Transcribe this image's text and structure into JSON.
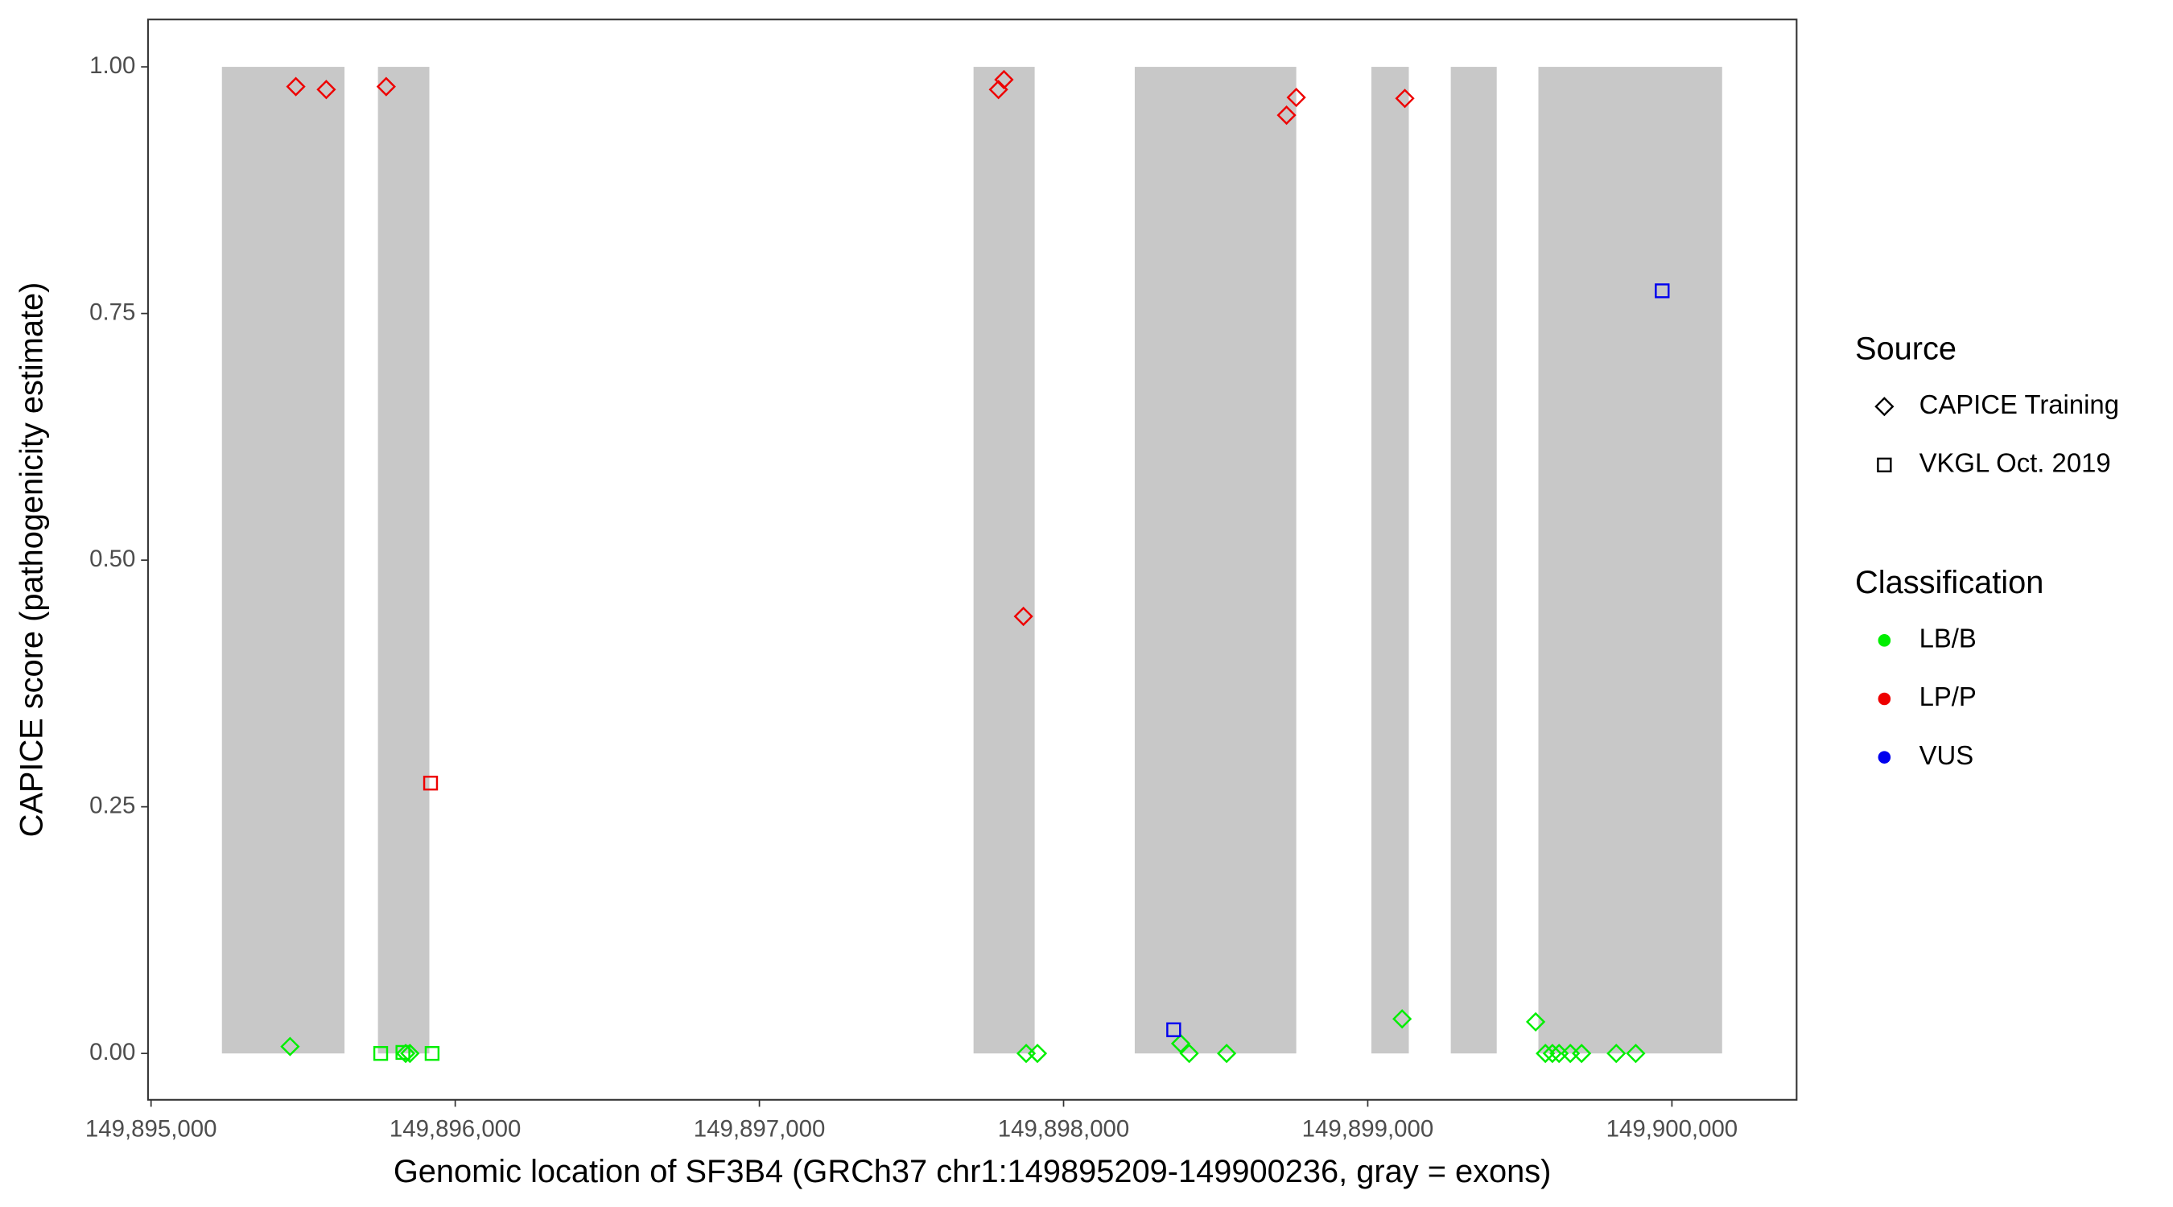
{
  "chart_data": {
    "type": "scatter",
    "x_label": "Genomic location of SF3B4 (GRCh37 chr1:149895209-149900236, gray = exons)",
    "y_label": "CAPICE score (pathogenicity estimate)",
    "xlim": [
      149894990,
      149900410
    ],
    "ylim": [
      -0.047,
      1.048
    ],
    "xticks": [
      {
        "value": 149895000,
        "label": "149,895,000"
      },
      {
        "value": 149896000,
        "label": "149,896,000"
      },
      {
        "value": 149897000,
        "label": "149,897,000"
      },
      {
        "value": 149898000,
        "label": "149,898,000"
      },
      {
        "value": 149899000,
        "label": "149,899,000"
      },
      {
        "value": 149900000,
        "label": "149,900,000"
      }
    ],
    "yticks": [
      {
        "value": 0,
        "label": "0.00"
      },
      {
        "value": 0.25,
        "label": "0.25"
      },
      {
        "value": 0.5,
        "label": "0.50"
      },
      {
        "value": 0.75,
        "label": "0.75"
      },
      {
        "value": 1,
        "label": "1.00"
      }
    ],
    "exon_color": "#c8c8c8",
    "exons": [
      {
        "start": 149895233,
        "end": 149895636
      },
      {
        "start": 149895746,
        "end": 149895915
      },
      {
        "start": 149897704,
        "end": 149897905
      },
      {
        "start": 149898234,
        "end": 149898765
      },
      {
        "start": 149899012,
        "end": 149899135
      },
      {
        "start": 149899273,
        "end": 149899424
      },
      {
        "start": 149899561,
        "end": 149900165
      }
    ],
    "shape_legend": {
      "title": "Source",
      "items": [
        {
          "name": "CAPICE Training",
          "shape": "diamond"
        },
        {
          "name": "VKGL Oct. 2019",
          "shape": "square"
        }
      ]
    },
    "color_legend_title": "Classification",
    "series": [
      {
        "name": "LB/B",
        "color": "#00ee00",
        "x": [
          149895457,
          149895837,
          149895851,
          149897877,
          149897914,
          149898385,
          149898413,
          149898536,
          149899113,
          149899552,
          149899584,
          149899607,
          149899629,
          149899666,
          149899703,
          149899817,
          149899881,
          149895755,
          149895828,
          149895924
        ],
        "values": [
          0.007,
          0,
          0,
          0,
          0,
          0.01,
          0,
          0,
          0.035,
          0.032,
          0,
          0,
          0,
          0,
          0,
          0,
          0,
          0,
          0.001,
          0
        ],
        "source": [
          0,
          0,
          0,
          0,
          0,
          0,
          0,
          0,
          0,
          0,
          0,
          0,
          0,
          0,
          0,
          0,
          0,
          1,
          1,
          1
        ]
      },
      {
        "name": "LP/P",
        "color": "#ee0000",
        "x": [
          149895476,
          149895576,
          149895773,
          149897786,
          149897804,
          149897868,
          149898733,
          149898765,
          149899122,
          149895919
        ],
        "values": [
          0.98,
          0.977,
          0.98,
          0.977,
          0.987,
          0.443,
          0.951,
          0.969,
          0.968,
          0.274
        ],
        "source": [
          0,
          0,
          0,
          0,
          0,
          0,
          0,
          0,
          0,
          1
        ]
      },
      {
        "name": "VUS",
        "color": "#0000ee",
        "x": [
          149898362,
          149899968
        ],
        "values": [
          0.024,
          0.773
        ],
        "source": [
          1,
          1
        ]
      }
    ]
  }
}
